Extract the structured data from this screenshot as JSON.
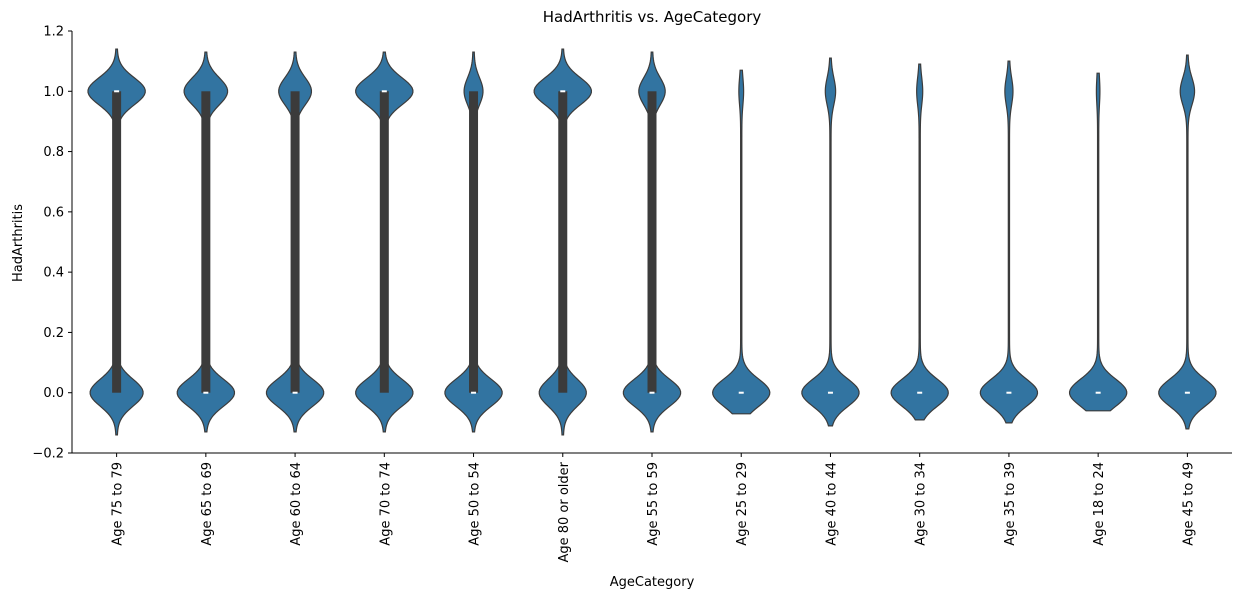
{
  "chart_data": {
    "type": "violin",
    "title": "HadArthritis vs. AgeCategory",
    "xlabel": "AgeCategory",
    "ylabel": "HadArthritis",
    "ylim": [
      -0.2,
      1.2
    ],
    "yticks": [
      "−0.2",
      "0.0",
      "0.2",
      "0.4",
      "0.6",
      "0.8",
      "1.0",
      "1.2"
    ],
    "grid": false,
    "color": "#3274a1",
    "edge_color": "#3b3b3b",
    "categories": [
      "Age 75 to 79",
      "Age 65 to 69",
      "Age 60 to 64",
      "Age 70 to 74",
      "Age 50 to 54",
      "Age 80 or older",
      "Age 55 to 59",
      "Age 25 to 29",
      "Age 40 to 44",
      "Age 30 to 34",
      "Age 35 to 39",
      "Age 18 to 24",
      "Age 45 to 49"
    ],
    "proportion_had_arthritis": [
      0.52,
      0.43,
      0.36,
      0.5,
      0.24,
      0.55,
      0.31,
      0.06,
      0.14,
      0.08,
      0.11,
      0.04,
      0.19
    ],
    "extent": [
      [
        -0.14,
        1.14
      ],
      [
        -0.13,
        1.13
      ],
      [
        -0.13,
        1.13
      ],
      [
        -0.13,
        1.13
      ],
      [
        -0.13,
        1.13
      ],
      [
        -0.14,
        1.14
      ],
      [
        -0.13,
        1.13
      ],
      [
        -0.07,
        1.07
      ],
      [
        -0.11,
        1.11
      ],
      [
        -0.09,
        1.09
      ],
      [
        -0.1,
        1.1
      ],
      [
        -0.06,
        1.06
      ],
      [
        -0.12,
        1.12
      ]
    ],
    "median": [
      1,
      0,
      0,
      1,
      0,
      1,
      0,
      0,
      0,
      0,
      0,
      0,
      0
    ],
    "quartiles": [
      [
        0,
        1
      ],
      [
        0,
        1
      ],
      [
        0,
        1
      ],
      [
        0,
        1
      ],
      [
        0,
        1
      ],
      [
        0,
        1
      ],
      [
        0,
        1
      ],
      [
        0,
        0
      ],
      [
        0,
        0
      ],
      [
        0,
        0
      ],
      [
        0,
        0
      ],
      [
        0,
        0
      ],
      [
        0,
        0
      ]
    ]
  }
}
